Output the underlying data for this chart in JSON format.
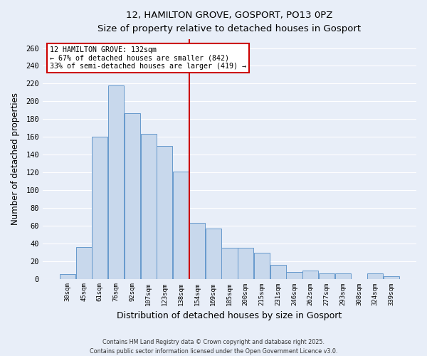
{
  "title": "12, HAMILTON GROVE, GOSPORT, PO13 0PZ",
  "subtitle": "Size of property relative to detached houses in Gosport",
  "xlabel": "Distribution of detached houses by size in Gosport",
  "ylabel": "Number of detached properties",
  "bar_color": "#c8d8ec",
  "bar_edge_color": "#6699cc",
  "background_color": "#e8eef8",
  "grid_color": "#ffffff",
  "bin_labels": [
    "30sqm",
    "45sqm",
    "61sqm",
    "76sqm",
    "92sqm",
    "107sqm",
    "123sqm",
    "138sqm",
    "154sqm",
    "169sqm",
    "185sqm",
    "200sqm",
    "215sqm",
    "231sqm",
    "246sqm",
    "262sqm",
    "277sqm",
    "293sqm",
    "308sqm",
    "324sqm",
    "339sqm"
  ],
  "bar_heights": [
    5,
    36,
    160,
    218,
    187,
    163,
    150,
    121,
    63,
    57,
    35,
    35,
    29,
    16,
    8,
    9,
    6,
    6,
    0,
    6,
    3
  ],
  "property_label": "12 HAMILTON GROVE: 132sqm",
  "pct_smaller": 67,
  "n_smaller": 842,
  "pct_larger": 33,
  "n_larger": 419,
  "vline_x": 7.5,
  "ylim": [
    0,
    270
  ],
  "yticks": [
    0,
    20,
    40,
    60,
    80,
    100,
    120,
    140,
    160,
    180,
    200,
    220,
    240,
    260
  ],
  "annotation_box_color": "#ffffff",
  "annotation_border_color": "#cc0000",
  "footer1": "Contains HM Land Registry data © Crown copyright and database right 2025.",
  "footer2": "Contains public sector information licensed under the Open Government Licence v3.0."
}
